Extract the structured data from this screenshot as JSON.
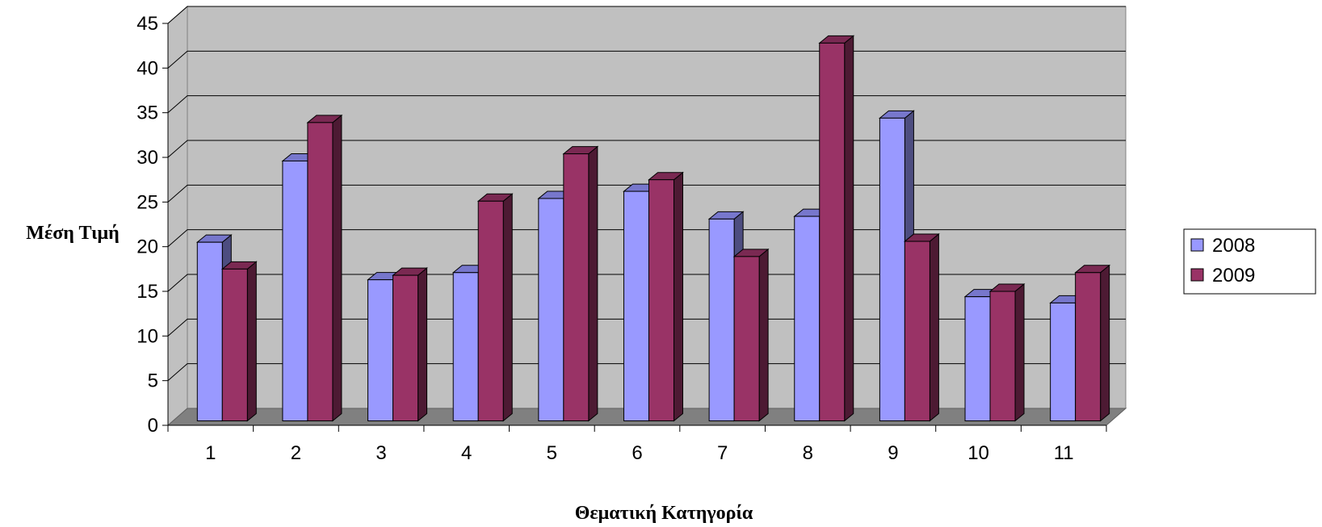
{
  "chart_data": {
    "type": "bar",
    "title": "",
    "xlabel": "Θεματική Κατηγορία",
    "ylabel": "Μέση Τιμή",
    "categories": [
      "1",
      "2",
      "3",
      "4",
      "5",
      "6",
      "7",
      "8",
      "9",
      "10",
      "11"
    ],
    "series": [
      {
        "name": "2008",
        "color": "#9999ff",
        "side_color": "#4d4d80",
        "top_color": "#7777cc",
        "values": [
          20.0,
          29.1,
          15.8,
          16.6,
          24.9,
          25.7,
          22.6,
          22.9,
          33.9,
          13.9,
          13.2
        ]
      },
      {
        "name": "2009",
        "color": "#993366",
        "side_color": "#4d1a33",
        "top_color": "#7a2952",
        "values": [
          17.0,
          33.4,
          16.3,
          24.6,
          29.9,
          27.0,
          18.4,
          42.3,
          20.1,
          14.5,
          16.6
        ]
      }
    ],
    "ylim": [
      0,
      45
    ],
    "yticks": [
      "0",
      "5",
      "10",
      "15",
      "20",
      "25",
      "30",
      "35",
      "40",
      "45"
    ],
    "grid": true,
    "legend_position": "right",
    "style": "3d-clustered-column",
    "wall_color": "#c0c0c0",
    "floor_color": "#808080"
  }
}
